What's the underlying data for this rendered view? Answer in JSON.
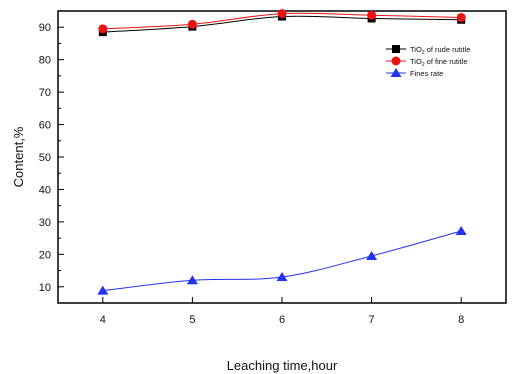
{
  "chart_data": {
    "type": "line",
    "title": "",
    "xlabel": "Leaching time,hour",
    "ylabel": "Content,%",
    "x": [
      4,
      5,
      6,
      7,
      8
    ],
    "xlim": [
      3.5,
      8.5
    ],
    "ylim": [
      5,
      95
    ],
    "x_ticks": [
      "4",
      "5",
      "6",
      "7",
      "8"
    ],
    "y_ticks": [
      "10",
      "20",
      "30",
      "40",
      "50",
      "60",
      "70",
      "80",
      "90"
    ],
    "grid": false,
    "legend_position": "top-right",
    "series": [
      {
        "name": "TiO2 of rude rutitle",
        "label_main": "TiO",
        "label_sub": "2",
        "label_rest": " of rude rutitle",
        "marker": "square",
        "color": "#000000",
        "values": [
          88.5,
          90.2,
          93.3,
          92.7,
          92.3
        ]
      },
      {
        "name": "TiO2 of fine rutitle",
        "label_main": "TiO",
        "label_sub": "2",
        "label_rest": " of fine rutitle",
        "marker": "circle",
        "color": "#ee1111",
        "values": [
          89.5,
          90.9,
          94.2,
          93.7,
          93.0
        ]
      },
      {
        "name": "Fines rate",
        "label_main": "Fines rate",
        "label_sub": "",
        "label_rest": "",
        "marker": "triangle",
        "color": "#2233ee",
        "values": [
          8.8,
          12.0,
          13.0,
          19.5,
          27.2
        ]
      }
    ]
  }
}
